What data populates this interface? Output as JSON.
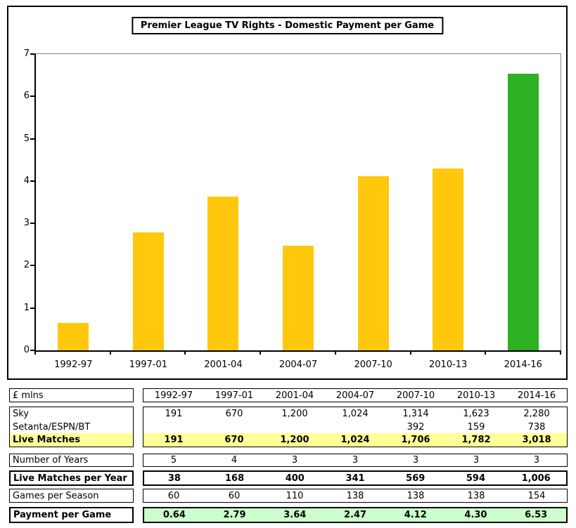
{
  "chart_data": {
    "type": "bar",
    "title": "Premier League TV Rights - Domestic Payment per Game",
    "categories": [
      "1992-97",
      "1997-01",
      "2001-04",
      "2004-07",
      "2007-10",
      "2010-13",
      "2014-16"
    ],
    "values": [
      0.64,
      2.79,
      3.64,
      2.47,
      4.12,
      4.3,
      6.53
    ],
    "bar_colors": [
      "#FFC80D",
      "#FFC80D",
      "#FFC80D",
      "#FFC80D",
      "#FFC80D",
      "#FFC80D",
      "#2DB123"
    ],
    "xlabel": "",
    "ylabel": "",
    "ylim": [
      0,
      7
    ],
    "yticks": [
      "0",
      "1",
      "2",
      "3",
      "4",
      "5",
      "6",
      "7"
    ],
    "grid": false,
    "legend": "none"
  },
  "colors": {
    "bar_yellow": "#FFC80D",
    "bar_green": "#2DB123",
    "highlight_yellow": "#FFFF99",
    "highlight_green": "#CCFFCC",
    "plot_border_gray": "#808080"
  },
  "table": {
    "unit_label": "£ mlns",
    "years": [
      "1992-97",
      "1997-01",
      "2001-04",
      "2004-07",
      "2007-10",
      "2010-13",
      "2014-16"
    ],
    "rows": {
      "sky": {
        "label": "Sky",
        "values": [
          "191",
          "670",
          "1,200",
          "1,024",
          "1,314",
          "1,623",
          "2,280"
        ]
      },
      "setanta": {
        "label": "Setanta/ESPN/BT",
        "values": [
          "",
          "",
          "",
          "",
          "392",
          "159",
          "738"
        ]
      },
      "live_matches": {
        "label": "Live Matches",
        "values": [
          "191",
          "670",
          "1,200",
          "1,024",
          "1,706",
          "1,782",
          "3,018"
        ]
      },
      "number_of_years": {
        "label": "Number of Years",
        "values": [
          "5",
          "4",
          "3",
          "3",
          "3",
          "3",
          "3"
        ]
      },
      "live_matches_per_year": {
        "label": "Live Matches per Year",
        "values": [
          "38",
          "168",
          "400",
          "341",
          "569",
          "594",
          "1,006"
        ]
      },
      "games_per_season": {
        "label": "Games per Season",
        "values": [
          "60",
          "60",
          "110",
          "138",
          "138",
          "138",
          "154"
        ]
      },
      "payment_per_game": {
        "label": "Payment per Game",
        "values": [
          "0.64",
          "2.79",
          "3.64",
          "2.47",
          "4.12",
          "4.30",
          "6.53"
        ]
      }
    }
  }
}
